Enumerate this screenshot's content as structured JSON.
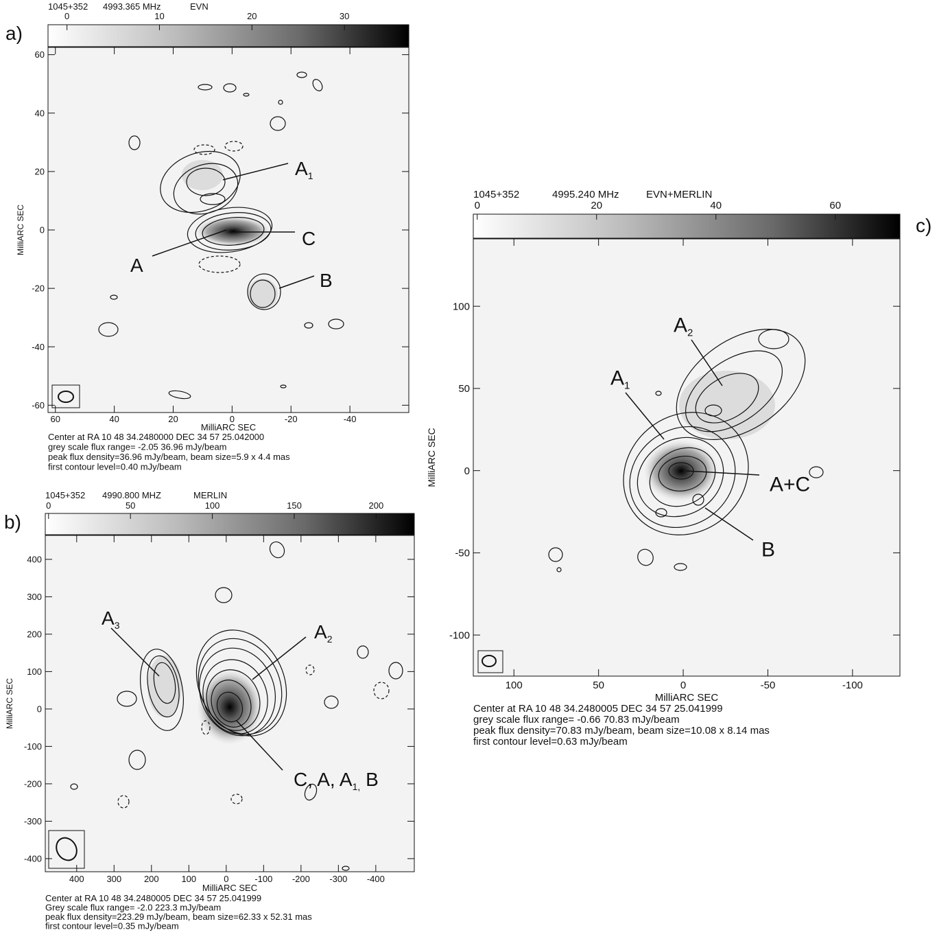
{
  "chart_data": [
    {
      "type": "contour",
      "panel_label": "a)",
      "header": [
        "1045+352",
        "4993.365 MHz",
        "EVN"
      ],
      "colorbar_lim": [
        -2.05,
        36.96
      ],
      "colorbar_ticks": [
        0,
        10,
        20,
        30
      ],
      "xlabel": "MilliARC SEC",
      "ylabel": "MilliARC SEC",
      "xlim": [
        62.5,
        -60
      ],
      "ylim": [
        -62.5,
        62.5
      ],
      "xticks": [
        60,
        40,
        20,
        0,
        -20,
        -40
      ],
      "yticks": [
        60,
        40,
        20,
        0,
        -20,
        -40,
        -60
      ],
      "annotations": [
        {
          "text": "A",
          "sub": "1"
        },
        {
          "text": "C"
        },
        {
          "text": "A"
        },
        {
          "text": "B"
        }
      ],
      "notes": [
        "Center at RA 10 48 34.2480000  DEC 34 57 25.042000",
        "grey scale flux range= -2.05 36.96 mJy/beam",
        "peak flux density=36.96 mJy/beam, beam size=5.9 x 4.4 mas",
        "first contour level=0.40 mJy/beam"
      ]
    },
    {
      "type": "contour",
      "panel_label": "b)",
      "header": [
        "1045+352",
        "4990.800 MHZ",
        "MERLIN"
      ],
      "colorbar_lim": [
        -2.0,
        223.3
      ],
      "colorbar_ticks": [
        0,
        50,
        100,
        150,
        200
      ],
      "xlabel": "MilliARC SEC",
      "ylabel": "MilliARC SEC",
      "xlim": [
        484,
        -503
      ],
      "ylim": [
        -435,
        464
      ],
      "xticks": [
        400,
        300,
        200,
        100,
        0,
        -100,
        -200,
        -300,
        -400
      ],
      "yticks": [
        400,
        300,
        200,
        100,
        0,
        -100,
        -200,
        -300,
        -400
      ],
      "annotations": [
        {
          "text": "A",
          "sub": "3"
        },
        {
          "text": "A",
          "sub": "2"
        },
        {
          "text": "C, A, A",
          "sub": "1,",
          "after": " B"
        }
      ],
      "notes": [
        "Center at RA 10 48 34.2480005  DEC 34 57 25.041999",
        "Grey scale flux range= -2.0 223.3 mJy/beam",
        "peak flux density=223.29 mJy/beam, beam size=62.33 x 52.31 mas",
        "first contour level=0.35 mJy/beam"
      ]
    },
    {
      "type": "contour",
      "panel_label": "c)",
      "header": [
        "1045+352",
        "4995.240 MHz",
        "EVN+MERLIN"
      ],
      "colorbar_lim": [
        -0.66,
        70.83
      ],
      "colorbar_ticks": [
        0,
        20,
        40,
        60
      ],
      "xlabel": "MilliARC SEC",
      "ylabel": "MilliARC SEC",
      "xlim": [
        124,
        -128
      ],
      "ylim": [
        -125,
        141
      ],
      "xticks": [
        100,
        50,
        0,
        -50,
        -100
      ],
      "yticks": [
        100,
        50,
        0,
        -50,
        -100
      ],
      "annotations": [
        {
          "text": "A",
          "sub": "2"
        },
        {
          "text": "A",
          "sub": "1"
        },
        {
          "text": "A+C"
        },
        {
          "text": "B"
        }
      ],
      "notes": [
        "Center at RA 10 48 34.2480005  DEC 34 57 25.041999",
        "grey scale flux range= -0.66 70.83 mJy/beam",
        "peak flux density=70.83 mJy/beam, beam size=10.08 x 8.14 mas",
        "first contour level=0.63 mJy/beam"
      ]
    }
  ]
}
